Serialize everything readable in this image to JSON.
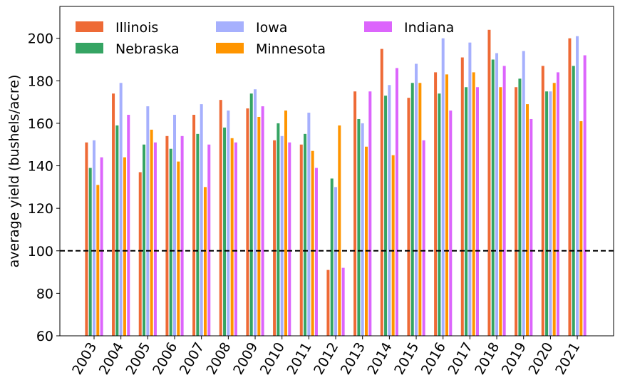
{
  "chart_data": {
    "type": "bar",
    "title": "",
    "xlabel": "",
    "ylabel": "average yield (bushels/acre)",
    "ylim": [
      60,
      215
    ],
    "yticks": [
      60,
      80,
      100,
      120,
      140,
      160,
      180,
      200
    ],
    "categories": [
      "2003",
      "2004",
      "2005",
      "2006",
      "2007",
      "2008",
      "2009",
      "2010",
      "2011",
      "2012",
      "2013",
      "2014",
      "2015",
      "2016",
      "2017",
      "2018",
      "2019",
      "2020",
      "2021"
    ],
    "reference_line": {
      "y": 100,
      "style": "dashed",
      "color": "#000000"
    },
    "legend": {
      "position": "top-left",
      "columns": 3
    },
    "series": [
      {
        "name": "Illinois",
        "color": "#ee6a36",
        "values": [
          151,
          174,
          137,
          154,
          164,
          171,
          167,
          152,
          150,
          91,
          175,
          195,
          172,
          184,
          191,
          204,
          177,
          187,
          200
        ]
      },
      {
        "name": "Nebraska",
        "color": "#35a463",
        "values": [
          139,
          159,
          150,
          148,
          155,
          158,
          174,
          160,
          155,
          134,
          162,
          173,
          179,
          174,
          177,
          190,
          181,
          175,
          187
        ]
      },
      {
        "name": "Iowa",
        "color": "#a6b0fd",
        "values": [
          152,
          179,
          168,
          164,
          169,
          166,
          176,
          154,
          165,
          130,
          160,
          178,
          188,
          200,
          198,
          193,
          194,
          175,
          201
        ]
      },
      {
        "name": "Minnesota",
        "color": "#ff9500",
        "values": [
          131,
          144,
          157,
          142,
          130,
          153,
          163,
          166,
          147,
          159,
          149,
          145,
          179,
          183,
          184,
          177,
          169,
          179,
          161
        ]
      },
      {
        "name": "Indiana",
        "color": "#dc65fc",
        "values": [
          144,
          164,
          151,
          154,
          150,
          151,
          168,
          151,
          139,
          92,
          175,
          186,
          152,
          166,
          177,
          187,
          162,
          184,
          192
        ]
      }
    ]
  }
}
